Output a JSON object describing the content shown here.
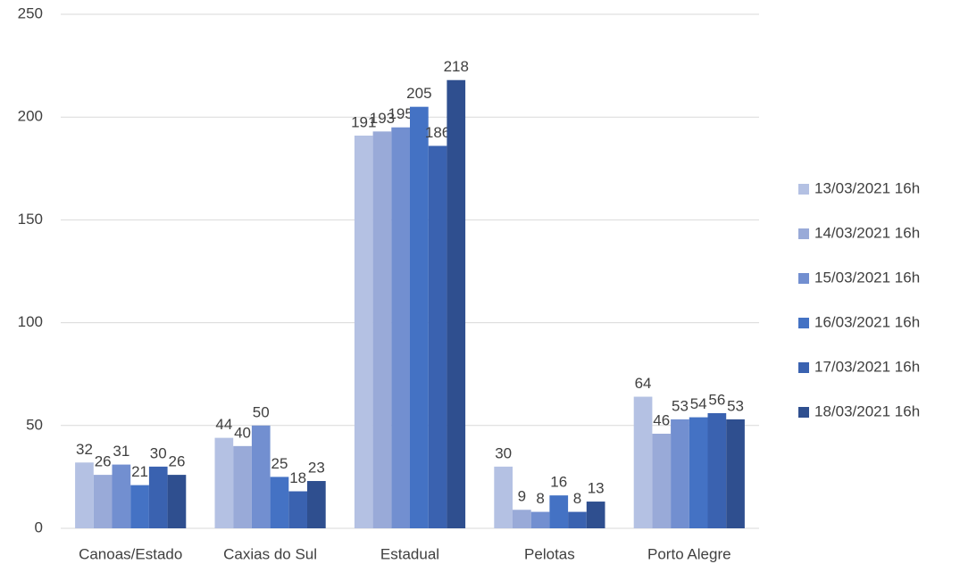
{
  "chart_data": {
    "type": "bar",
    "categories": [
      "Canoas/Estado",
      "Caxias do Sul",
      "Estadual",
      "Pelotas",
      "Porto Alegre"
    ],
    "series": [
      {
        "name": "13/03/2021 16h",
        "color": "#b4c1e3",
        "values": [
          32,
          44,
          191,
          30,
          64
        ]
      },
      {
        "name": "14/03/2021 16h",
        "color": "#99aad8",
        "values": [
          26,
          40,
          193,
          9,
          46
        ]
      },
      {
        "name": "15/03/2021 16h",
        "color": "#728fd0",
        "values": [
          31,
          50,
          195,
          8,
          53
        ]
      },
      {
        "name": "16/03/2021 16h",
        "color": "#4472c4",
        "values": [
          21,
          25,
          205,
          16,
          54
        ]
      },
      {
        "name": "17/03/2021 16h",
        "color": "#3a62b0",
        "values": [
          30,
          18,
          186,
          8,
          56
        ]
      },
      {
        "name": "18/03/2021 16h",
        "color": "#2f4f8f",
        "values": [
          26,
          23,
          218,
          13,
          53
        ]
      }
    ],
    "ylim": [
      0,
      250
    ],
    "yticks": [
      0,
      50,
      100,
      150,
      200,
      250
    ],
    "grid": true,
    "legend": "right"
  }
}
